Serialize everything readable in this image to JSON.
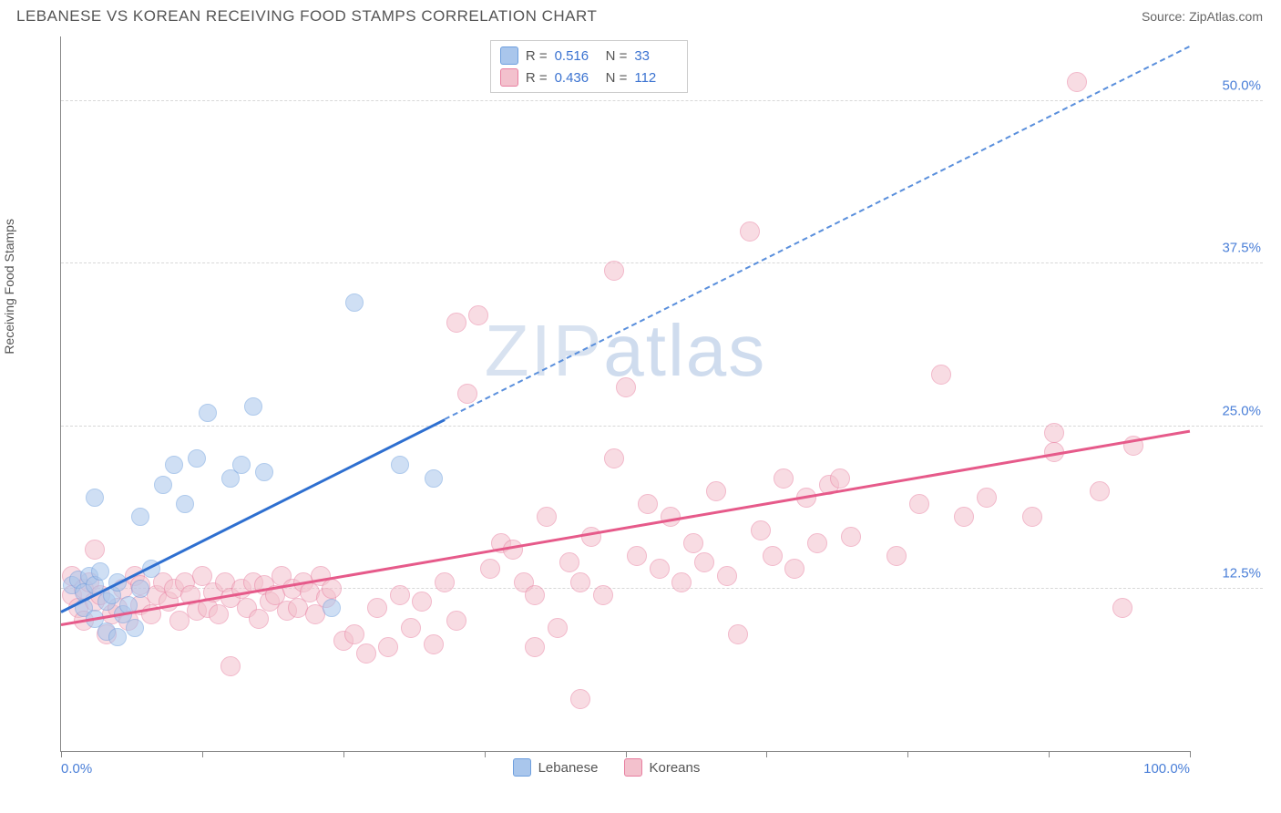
{
  "header": {
    "title": "LEBANESE VS KOREAN RECEIVING FOOD STAMPS CORRELATION CHART",
    "source": "Source: ZipAtlas.com"
  },
  "chart": {
    "type": "scatter",
    "y_axis_label": "Receiving Food Stamps",
    "watermark": "ZIPatlas",
    "background_color": "#ffffff",
    "grid_color": "#d8d8d8",
    "axis_color": "#888888",
    "xlim": [
      0,
      100
    ],
    "ylim": [
      0,
      55
    ],
    "x_ticks": [
      0,
      12.5,
      25,
      37.5,
      50,
      62.5,
      75,
      87.5,
      100
    ],
    "x_tick_labels": {
      "0": "0.0%",
      "100": "100.0%"
    },
    "y_ticks": [
      12.5,
      25.0,
      37.5,
      50.0
    ],
    "y_tick_labels": [
      "12.5%",
      "25.0%",
      "37.5%",
      "50.0%"
    ],
    "tick_label_color": "#4a7fd8",
    "tick_label_fontsize": 15,
    "series": [
      {
        "name": "Lebanese",
        "fill_color": "#a9c6ec",
        "stroke_color": "#6e9fde",
        "fill_opacity": 0.55,
        "marker_radius": 10,
        "trend": {
          "solid_color": "#2e6fd0",
          "dashed_color": "#5a8fdc",
          "x0": 0,
          "y0": 10.8,
          "x_solid_end": 34,
          "y_solid_end": 25.6,
          "x_dash_end": 100,
          "y_dash_end": 54.3
        },
        "points": [
          [
            1,
            12.8
          ],
          [
            1.5,
            13.2
          ],
          [
            2,
            12.2
          ],
          [
            2,
            11
          ],
          [
            2.5,
            13.5
          ],
          [
            3,
            10.2
          ],
          [
            3,
            12.8
          ],
          [
            3.5,
            13.8
          ],
          [
            4,
            9.2
          ],
          [
            4,
            11.5
          ],
          [
            4.5,
            12
          ],
          [
            5,
            8.8
          ],
          [
            5,
            13
          ],
          [
            5.5,
            10.5
          ],
          [
            6,
            11.2
          ],
          [
            6.5,
            9.5
          ],
          [
            7,
            12.5
          ],
          [
            3,
            19.5
          ],
          [
            7,
            18
          ],
          [
            8,
            14
          ],
          [
            9,
            20.5
          ],
          [
            10,
            22
          ],
          [
            11,
            19
          ],
          [
            12,
            22.5
          ],
          [
            13,
            26
          ],
          [
            15,
            21
          ],
          [
            16,
            22
          ],
          [
            17,
            26.5
          ],
          [
            18,
            21.5
          ],
          [
            24,
            11
          ],
          [
            26,
            34.5
          ],
          [
            30,
            22
          ],
          [
            33,
            21
          ]
        ]
      },
      {
        "name": "Koreans",
        "fill_color": "#f3c1cd",
        "stroke_color": "#e87fa0",
        "fill_opacity": 0.55,
        "marker_radius": 11,
        "trend": {
          "solid_color": "#e65a8a",
          "dashed_color": "#ef9cb6",
          "x0": 0,
          "y0": 9.8,
          "x_solid_end": 100,
          "y_solid_end": 24.7,
          "x_dash_end": 100,
          "y_dash_end": 24.7
        },
        "points": [
          [
            1,
            13.5
          ],
          [
            1,
            12
          ],
          [
            1.5,
            11
          ],
          [
            2,
            12.5
          ],
          [
            2,
            10
          ],
          [
            2.5,
            13
          ],
          [
            3,
            11.5
          ],
          [
            3.5,
            12
          ],
          [
            4,
            9
          ],
          [
            4.5,
            10.5
          ],
          [
            5,
            11
          ],
          [
            5.5,
            12.5
          ],
          [
            6,
            10
          ],
          [
            6.5,
            13.5
          ],
          [
            7,
            11.2
          ],
          [
            7,
            12.8
          ],
          [
            8,
            10.5
          ],
          [
            8.5,
            12
          ],
          [
            9,
            13
          ],
          [
            9.5,
            11.5
          ],
          [
            10,
            12.5
          ],
          [
            10.5,
            10
          ],
          [
            11,
            13
          ],
          [
            11.5,
            12
          ],
          [
            12,
            10.8
          ],
          [
            12.5,
            13.5
          ],
          [
            13,
            11
          ],
          [
            13.5,
            12.2
          ],
          [
            14,
            10.5
          ],
          [
            14.5,
            13
          ],
          [
            15,
            11.8
          ],
          [
            15,
            6.5
          ],
          [
            16,
            12.5
          ],
          [
            16.5,
            11
          ],
          [
            17,
            13
          ],
          [
            17.5,
            10.2
          ],
          [
            18,
            12.8
          ],
          [
            18.5,
            11.5
          ],
          [
            19,
            12
          ],
          [
            19.5,
            13.5
          ],
          [
            20,
            10.8
          ],
          [
            20.5,
            12.5
          ],
          [
            21,
            11
          ],
          [
            21.5,
            13
          ],
          [
            22,
            12.2
          ],
          [
            22.5,
            10.5
          ],
          [
            23,
            13.5
          ],
          [
            23.5,
            11.8
          ],
          [
            24,
            12.5
          ],
          [
            25,
            8.5
          ],
          [
            26,
            9
          ],
          [
            27,
            7.5
          ],
          [
            28,
            11
          ],
          [
            29,
            8
          ],
          [
            30,
            12
          ],
          [
            31,
            9.5
          ],
          [
            32,
            11.5
          ],
          [
            33,
            8.2
          ],
          [
            34,
            13
          ],
          [
            35,
            10
          ],
          [
            36,
            27.5
          ],
          [
            35,
            33
          ],
          [
            37,
            33.5
          ],
          [
            38,
            14
          ],
          [
            39,
            16
          ],
          [
            40,
            15.5
          ],
          [
            41,
            13
          ],
          [
            42,
            12
          ],
          [
            42,
            8
          ],
          [
            43,
            18
          ],
          [
            44,
            9.5
          ],
          [
            45,
            14.5
          ],
          [
            46,
            13
          ],
          [
            46,
            4
          ],
          [
            47,
            16.5
          ],
          [
            48,
            12
          ],
          [
            49,
            22.5
          ],
          [
            49,
            37
          ],
          [
            50,
            28
          ],
          [
            51,
            15
          ],
          [
            52,
            19
          ],
          [
            53,
            14
          ],
          [
            54,
            18
          ],
          [
            55,
            13
          ],
          [
            56,
            16
          ],
          [
            57,
            14.5
          ],
          [
            58,
            20
          ],
          [
            59,
            13.5
          ],
          [
            60,
            9
          ],
          [
            61,
            40
          ],
          [
            62,
            17
          ],
          [
            63,
            15
          ],
          [
            64,
            21
          ],
          [
            65,
            14
          ],
          [
            66,
            19.5
          ],
          [
            67,
            16
          ],
          [
            68,
            20.5
          ],
          [
            69,
            21
          ],
          [
            70,
            16.5
          ],
          [
            74,
            15
          ],
          [
            76,
            19
          ],
          [
            78,
            29
          ],
          [
            80,
            18
          ],
          [
            82,
            19.5
          ],
          [
            86,
            18
          ],
          [
            88,
            23
          ],
          [
            88,
            24.5
          ],
          [
            90,
            51.5
          ],
          [
            92,
            20
          ],
          [
            94,
            11
          ],
          [
            95,
            23.5
          ],
          [
            3,
            15.5
          ]
        ]
      }
    ],
    "stats_box": {
      "rows": [
        {
          "swatch_fill": "#a9c6ec",
          "swatch_stroke": "#6e9fde",
          "R": "0.516",
          "N": "33"
        },
        {
          "swatch_fill": "#f3c1cd",
          "swatch_stroke": "#e87fa0",
          "R": "0.436",
          "N": "112"
        }
      ],
      "label_R": "R  =",
      "label_N": "N  ="
    },
    "legend": [
      {
        "swatch_fill": "#a9c6ec",
        "swatch_stroke": "#6e9fde",
        "label": "Lebanese"
      },
      {
        "swatch_fill": "#f3c1cd",
        "swatch_stroke": "#e87fa0",
        "label": "Koreans"
      }
    ]
  }
}
